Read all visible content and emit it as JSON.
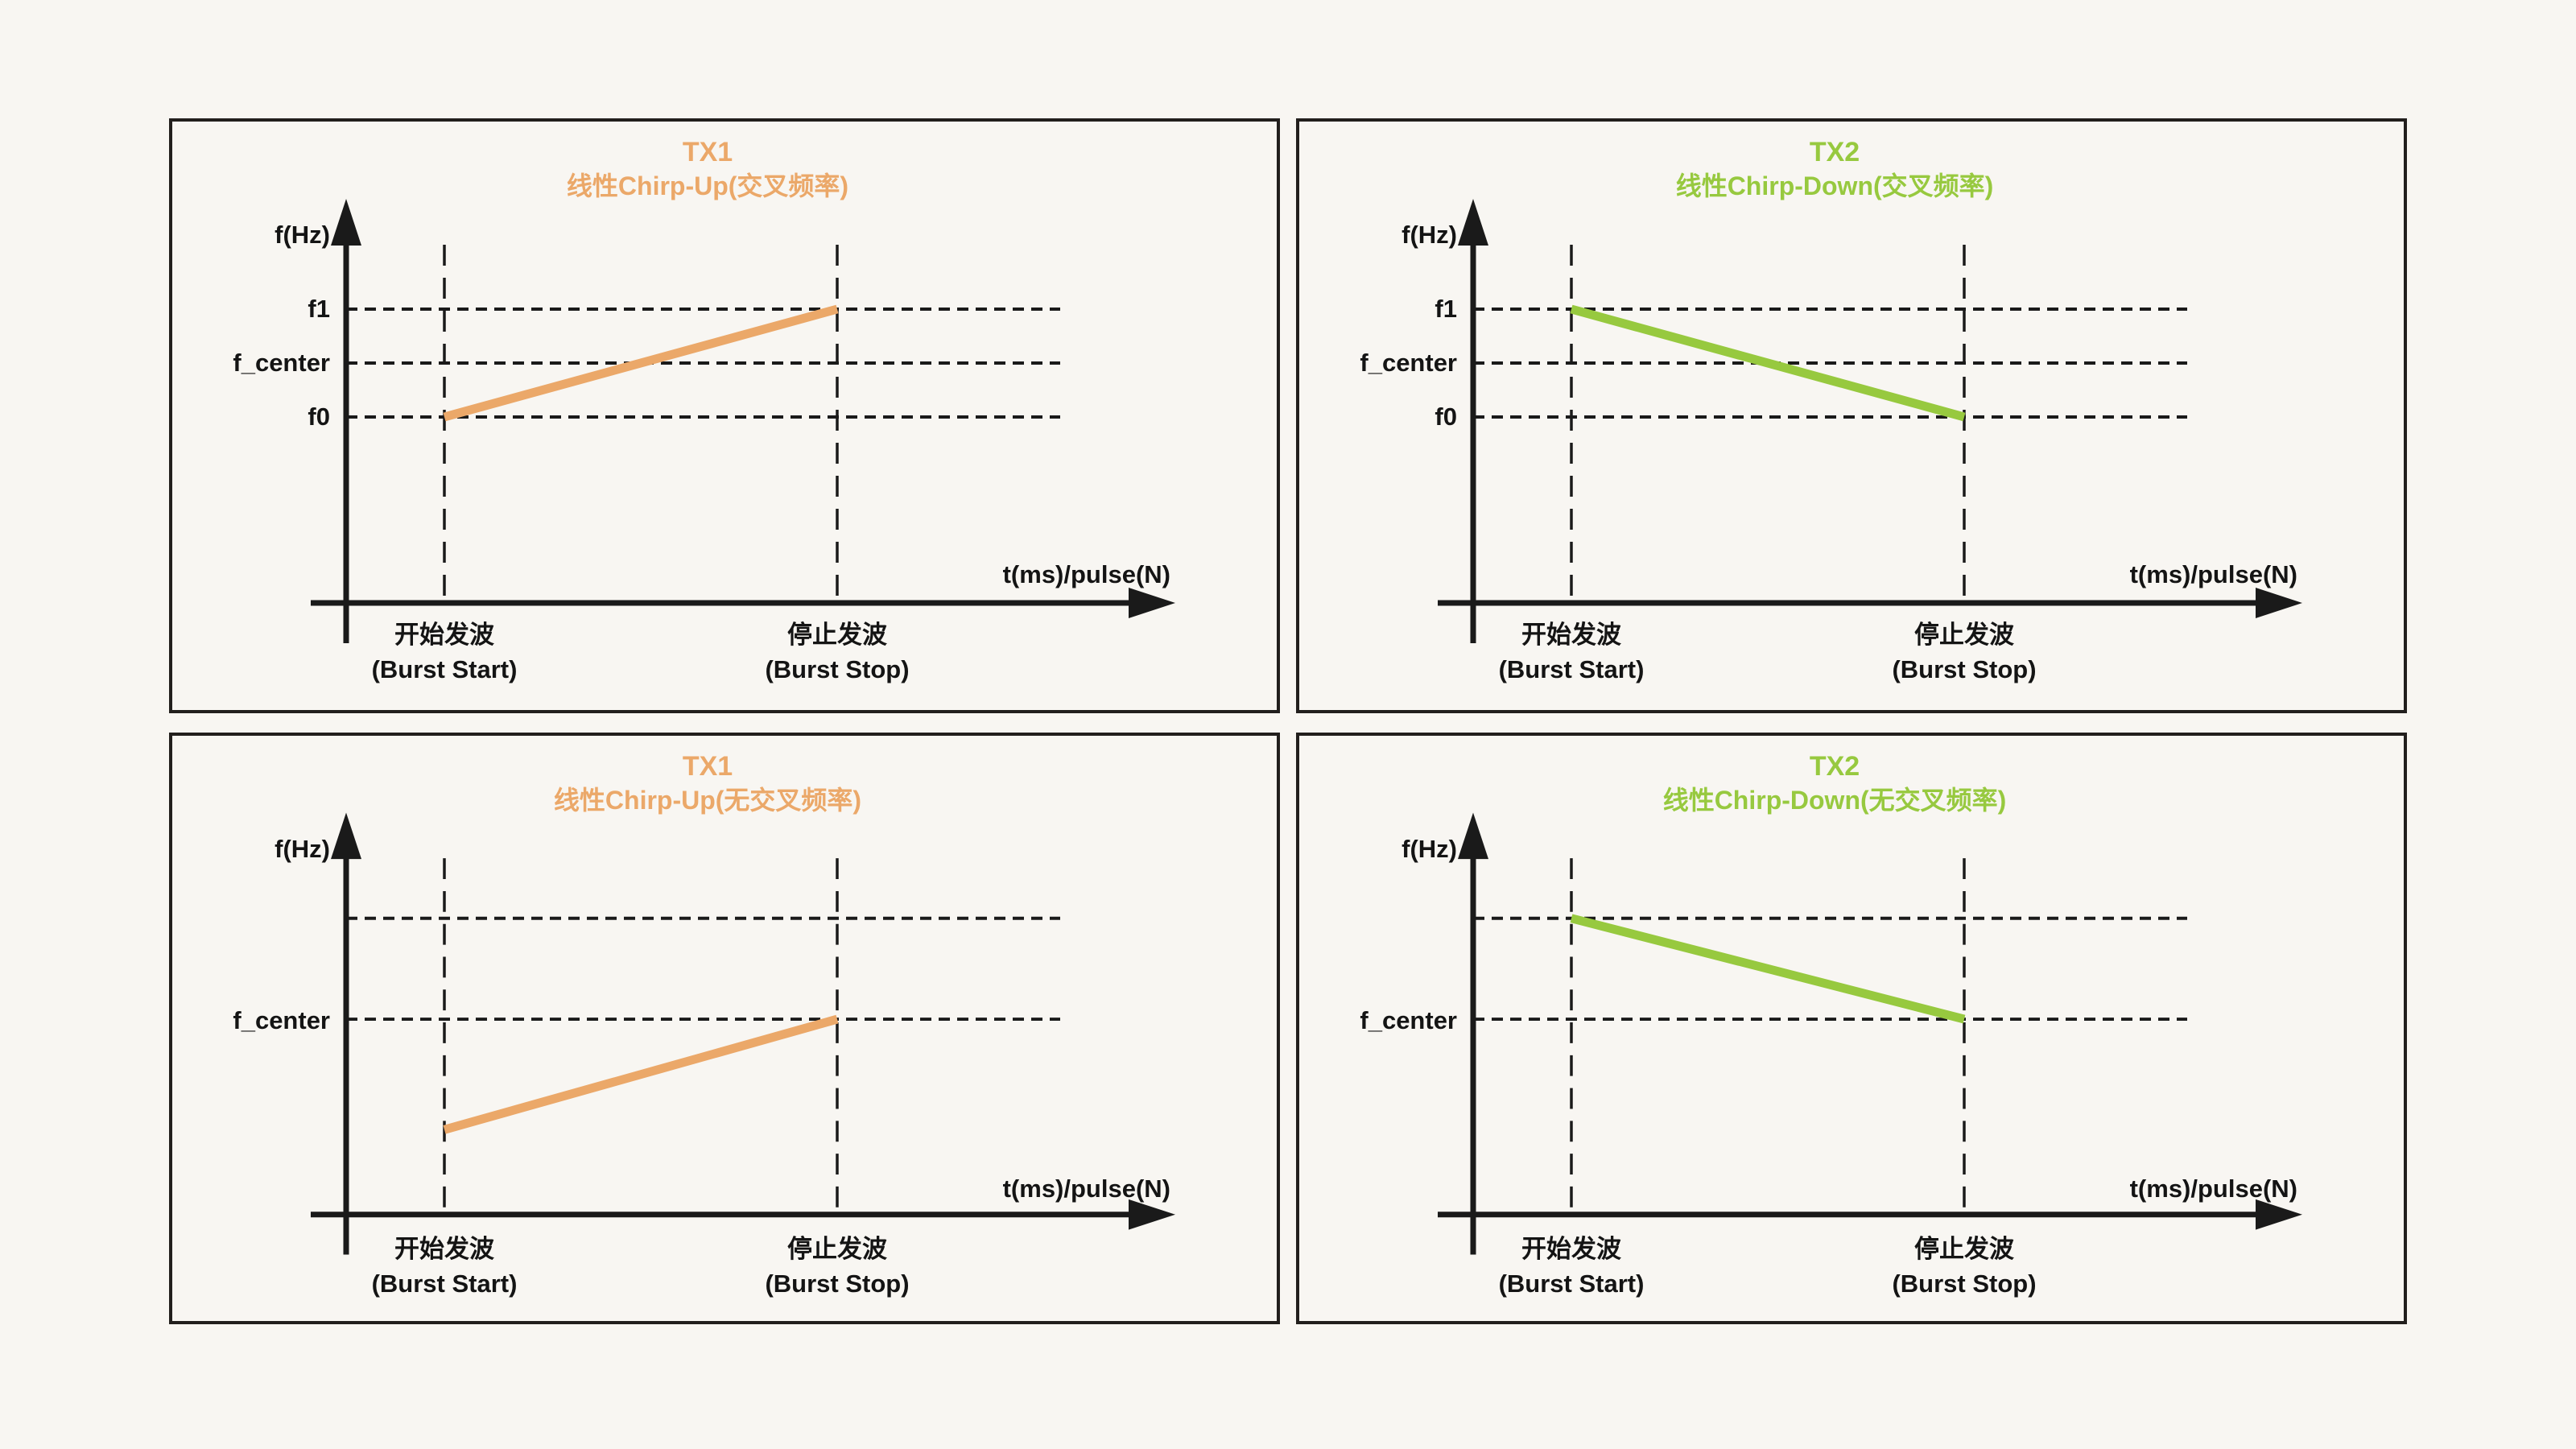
{
  "page": {
    "background": "#F8F6F2",
    "panel_border_color": "#221F1D",
    "line_color": "#1A1A1A",
    "text_color": "#141414"
  },
  "colors": {
    "tx1_orange": "#EBA869",
    "tx2_green": "#97C93F"
  },
  "axis": {
    "y_label": "f(Hz)",
    "x_label": "t(ms)/pulse(N)",
    "burst_start_line1": "开始发波",
    "burst_start_line2": "(Burst Start)",
    "burst_stop_line1": "停止发波",
    "burst_stop_line2": "(Burst Stop)"
  },
  "panels": [
    {
      "id": "tx1-chirp-up-crossing",
      "title": "TX1",
      "subtitle": "线性Chirp-Up(交叉频率)",
      "accent": "#EBA869",
      "y_axis_labels": [
        {
          "text": "f1",
          "y": 233
        },
        {
          "text": "f_center",
          "y": 300
        },
        {
          "text": "f0",
          "y": 367
        }
      ],
      "extra_gridlines_y": [],
      "chirp": {
        "from_time": "burst_start",
        "from_level": "f0",
        "from_y": 367,
        "to_time": "burst_stop",
        "to_level": "f1",
        "to_y": 233
      }
    },
    {
      "id": "tx2-chirp-down-crossing",
      "title": "TX2",
      "subtitle": "线性Chirp-Down(交叉频率)",
      "accent": "#97C93F",
      "y_axis_labels": [
        {
          "text": "f1",
          "y": 233
        },
        {
          "text": "f_center",
          "y": 300
        },
        {
          "text": "f0",
          "y": 367
        }
      ],
      "extra_gridlines_y": [],
      "chirp": {
        "from_time": "burst_start",
        "from_level": "f1",
        "from_y": 233,
        "to_time": "burst_stop",
        "to_level": "f0",
        "to_y": 367
      }
    },
    {
      "id": "tx1-chirp-up-noncrossing",
      "title": "TX1",
      "subtitle": "线性Chirp-Up(无交叉频率)",
      "accent": "#EBA869",
      "y_axis_labels": [
        {
          "text": "f_center",
          "y": 354
        }
      ],
      "extra_gridlines_y": [
        228
      ],
      "chirp": {
        "from_time": "burst_start",
        "from_level": "below f_center",
        "from_y": 492,
        "to_time": "burst_stop",
        "to_level": "f_center",
        "to_y": 354
      }
    },
    {
      "id": "tx2-chirp-down-noncrossing",
      "title": "TX2",
      "subtitle": "线性Chirp-Down(无交叉频率)",
      "accent": "#97C93F",
      "y_axis_labels": [
        {
          "text": "f_center",
          "y": 354
        }
      ],
      "extra_gridlines_y": [
        228
      ],
      "chirp": {
        "from_time": "burst_start",
        "from_level": "above f_center",
        "from_y": 228,
        "to_time": "burst_stop",
        "to_level": "f_center",
        "to_y": 354
      }
    }
  ],
  "chart_data": [
    {
      "type": "line",
      "title": "TX1 线性Chirp-Up(交叉频率)",
      "xlabel": "t(ms)/pulse(N)",
      "ylabel": "f(Hz)",
      "x": [
        "开始发波 (Burst Start)",
        "停止发波 (Burst Stop)"
      ],
      "series": [
        {
          "name": "TX1",
          "color": "#EBA869",
          "values": [
            "f0",
            "f1"
          ]
        }
      ],
      "y_gridlines": [
        "f1",
        "f_center",
        "f0"
      ],
      "grid": "dashed",
      "legend": "none"
    },
    {
      "type": "line",
      "title": "TX2 线性Chirp-Down(交叉频率)",
      "xlabel": "t(ms)/pulse(N)",
      "ylabel": "f(Hz)",
      "x": [
        "开始发波 (Burst Start)",
        "停止发波 (Burst Stop)"
      ],
      "series": [
        {
          "name": "TX2",
          "color": "#97C93F",
          "values": [
            "f1",
            "f0"
          ]
        }
      ],
      "y_gridlines": [
        "f1",
        "f_center",
        "f0"
      ],
      "grid": "dashed",
      "legend": "none"
    },
    {
      "type": "line",
      "title": "TX1 线性Chirp-Up(无交叉频率)",
      "xlabel": "t(ms)/pulse(N)",
      "ylabel": "f(Hz)",
      "x": [
        "开始发波 (Burst Start)",
        "停止发波 (Burst Stop)"
      ],
      "series": [
        {
          "name": "TX1",
          "color": "#EBA869",
          "values": [
            "below f_center",
            "f_center"
          ]
        }
      ],
      "y_gridlines": [
        "unlabeled upper line",
        "f_center"
      ],
      "grid": "dashed",
      "legend": "none"
    },
    {
      "type": "line",
      "title": "TX2 线性Chirp-Down(无交叉频率)",
      "xlabel": "t(ms)/pulse(N)",
      "ylabel": "f(Hz)",
      "x": [
        "开始发波 (Burst Start)",
        "停止发波 (Burst Stop)"
      ],
      "series": [
        {
          "name": "TX2",
          "color": "#97C93F",
          "values": [
            "above f_center",
            "f_center"
          ]
        }
      ],
      "y_gridlines": [
        "unlabeled upper line",
        "f_center"
      ],
      "grid": "dashed",
      "legend": "none"
    }
  ]
}
